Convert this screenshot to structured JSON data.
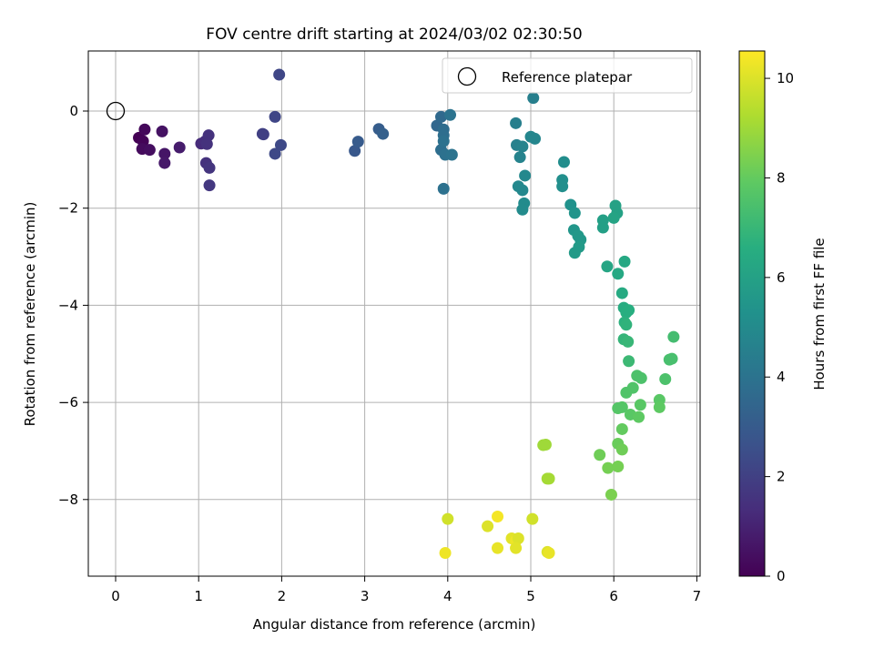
{
  "chart_data": {
    "type": "scatter",
    "title": "FOV centre drift starting at 2024/03/02 02:30:50",
    "xlabel": "Angular distance from reference (arcmin)",
    "ylabel": "Rotation from reference (arcmin)",
    "xlim": [
      -0.33,
      7.03
    ],
    "ylim": [
      -9.6,
      1.25
    ],
    "xticks": [
      "0",
      "1",
      "2",
      "3",
      "4",
      "5",
      "6",
      "7"
    ],
    "yticks": [
      "0",
      "−2",
      "−4",
      "−6",
      "−8"
    ],
    "grid": true,
    "legend": {
      "placement": "top-right",
      "entries": [
        "Reference platepar"
      ]
    },
    "reference_point": {
      "x": 0,
      "y": 0
    },
    "colorbar": {
      "label": "Hours from first FF file",
      "range": [
        0,
        10.55
      ],
      "ticks": [
        "0",
        "2",
        "4",
        "6",
        "8",
        "10"
      ],
      "colormap": "viridis"
    },
    "points": [
      {
        "x": 0.28,
        "y": -0.55,
        "h": 0.0
      },
      {
        "x": 0.33,
        "y": -0.62,
        "h": 0.1
      },
      {
        "x": 0.35,
        "y": -0.38,
        "h": 0.2
      },
      {
        "x": 0.32,
        "y": -0.78,
        "h": 0.3
      },
      {
        "x": 0.41,
        "y": -0.8,
        "h": 0.4
      },
      {
        "x": 0.56,
        "y": -0.42,
        "h": 0.5
      },
      {
        "x": 0.59,
        "y": -0.88,
        "h": 0.6
      },
      {
        "x": 0.59,
        "y": -1.07,
        "h": 0.7
      },
      {
        "x": 0.77,
        "y": -0.75,
        "h": 0.8
      },
      {
        "x": 1.03,
        "y": -0.67,
        "h": 1.3
      },
      {
        "x": 1.08,
        "y": -0.62,
        "h": 1.4
      },
      {
        "x": 1.12,
        "y": -0.5,
        "h": 1.5
      },
      {
        "x": 1.1,
        "y": -0.68,
        "h": 1.5
      },
      {
        "x": 1.09,
        "y": -1.07,
        "h": 1.5
      },
      {
        "x": 1.13,
        "y": -1.17,
        "h": 1.6
      },
      {
        "x": 1.13,
        "y": -1.53,
        "h": 1.7
      },
      {
        "x": 1.77,
        "y": -0.47,
        "h": 2.0
      },
      {
        "x": 1.78,
        "y": -0.48,
        "h": 2.0
      },
      {
        "x": 1.92,
        "y": -0.12,
        "h": 2.2
      },
      {
        "x": 1.99,
        "y": -0.7,
        "h": 2.3
      },
      {
        "x": 1.92,
        "y": -0.88,
        "h": 2.3
      },
      {
        "x": 1.97,
        "y": 0.75,
        "h": 2.2
      },
      {
        "x": 2.88,
        "y": -0.82,
        "h": 2.9
      },
      {
        "x": 2.92,
        "y": -0.63,
        "h": 3.0
      },
      {
        "x": 3.17,
        "y": -0.37,
        "h": 3.1
      },
      {
        "x": 3.22,
        "y": -0.47,
        "h": 3.2
      },
      {
        "x": 3.87,
        "y": -0.3,
        "h": 3.5
      },
      {
        "x": 3.92,
        "y": -0.12,
        "h": 3.6
      },
      {
        "x": 3.95,
        "y": -0.38,
        "h": 3.7
      },
      {
        "x": 3.95,
        "y": -0.5,
        "h": 3.8
      },
      {
        "x": 3.92,
        "y": -0.8,
        "h": 3.8
      },
      {
        "x": 3.97,
        "y": -0.9,
        "h": 3.9
      },
      {
        "x": 3.95,
        "y": -0.62,
        "h": 3.9
      },
      {
        "x": 4.03,
        "y": -0.08,
        "h": 4.0
      },
      {
        "x": 4.05,
        "y": -0.9,
        "h": 4.0
      },
      {
        "x": 3.95,
        "y": -1.6,
        "h": 3.9
      },
      {
        "x": 5.03,
        "y": 0.27,
        "h": 4.5
      },
      {
        "x": 4.82,
        "y": -0.25,
        "h": 4.5
      },
      {
        "x": 4.83,
        "y": -0.7,
        "h": 4.6
      },
      {
        "x": 4.9,
        "y": -0.73,
        "h": 4.7
      },
      {
        "x": 4.87,
        "y": -0.95,
        "h": 4.7
      },
      {
        "x": 5.0,
        "y": -0.53,
        "h": 4.8
      },
      {
        "x": 5.05,
        "y": -0.57,
        "h": 4.8
      },
      {
        "x": 4.93,
        "y": -1.33,
        "h": 4.9
      },
      {
        "x": 4.85,
        "y": -1.55,
        "h": 4.9
      },
      {
        "x": 4.9,
        "y": -1.63,
        "h": 4.9
      },
      {
        "x": 4.92,
        "y": -1.9,
        "h": 5.0
      },
      {
        "x": 4.9,
        "y": -2.03,
        "h": 5.0
      },
      {
        "x": 5.4,
        "y": -1.05,
        "h": 5.1
      },
      {
        "x": 5.38,
        "y": -1.42,
        "h": 5.2
      },
      {
        "x": 5.38,
        "y": -1.55,
        "h": 5.2
      },
      {
        "x": 5.48,
        "y": -1.93,
        "h": 5.3
      },
      {
        "x": 5.53,
        "y": -2.1,
        "h": 5.4
      },
      {
        "x": 5.52,
        "y": -2.45,
        "h": 5.5
      },
      {
        "x": 5.57,
        "y": -2.57,
        "h": 5.6
      },
      {
        "x": 5.6,
        "y": -2.65,
        "h": 5.6
      },
      {
        "x": 5.58,
        "y": -2.8,
        "h": 5.7
      },
      {
        "x": 5.53,
        "y": -2.92,
        "h": 5.7
      },
      {
        "x": 5.87,
        "y": -2.25,
        "h": 5.9
      },
      {
        "x": 5.87,
        "y": -2.4,
        "h": 5.9
      },
      {
        "x": 6.02,
        "y": -1.95,
        "h": 6.0
      },
      {
        "x": 6.04,
        "y": -2.1,
        "h": 6.0
      },
      {
        "x": 6.0,
        "y": -2.2,
        "h": 6.1
      },
      {
        "x": 5.92,
        "y": -3.2,
        "h": 6.2
      },
      {
        "x": 6.05,
        "y": -3.35,
        "h": 6.3
      },
      {
        "x": 6.13,
        "y": -3.1,
        "h": 6.3
      },
      {
        "x": 6.1,
        "y": -3.75,
        "h": 6.4
      },
      {
        "x": 6.12,
        "y": -4.05,
        "h": 6.5
      },
      {
        "x": 6.15,
        "y": -4.15,
        "h": 6.6
      },
      {
        "x": 6.18,
        "y": -4.1,
        "h": 6.6
      },
      {
        "x": 6.13,
        "y": -4.35,
        "h": 6.7
      },
      {
        "x": 6.15,
        "y": -4.4,
        "h": 6.8
      },
      {
        "x": 6.12,
        "y": -4.7,
        "h": 6.9
      },
      {
        "x": 6.17,
        "y": -4.75,
        "h": 7.0
      },
      {
        "x": 6.18,
        "y": -5.15,
        "h": 7.1
      },
      {
        "x": 6.72,
        "y": -4.65,
        "h": 7.3
      },
      {
        "x": 6.67,
        "y": -5.12,
        "h": 7.4
      },
      {
        "x": 6.7,
        "y": -5.1,
        "h": 7.4
      },
      {
        "x": 6.28,
        "y": -5.45,
        "h": 7.5
      },
      {
        "x": 6.33,
        "y": -5.5,
        "h": 7.5
      },
      {
        "x": 6.23,
        "y": -5.7,
        "h": 7.6
      },
      {
        "x": 6.15,
        "y": -5.8,
        "h": 7.6
      },
      {
        "x": 6.62,
        "y": -5.52,
        "h": 7.5
      },
      {
        "x": 6.05,
        "y": -6.12,
        "h": 7.7
      },
      {
        "x": 6.1,
        "y": -6.1,
        "h": 7.7
      },
      {
        "x": 6.2,
        "y": -6.25,
        "h": 7.8
      },
      {
        "x": 6.32,
        "y": -6.05,
        "h": 7.8
      },
      {
        "x": 6.3,
        "y": -6.3,
        "h": 7.9
      },
      {
        "x": 6.55,
        "y": -5.95,
        "h": 7.8
      },
      {
        "x": 6.55,
        "y": -6.1,
        "h": 7.9
      },
      {
        "x": 6.1,
        "y": -6.55,
        "h": 8.0
      },
      {
        "x": 6.05,
        "y": -6.85,
        "h": 8.1
      },
      {
        "x": 6.1,
        "y": -6.97,
        "h": 8.2
      },
      {
        "x": 5.83,
        "y": -7.08,
        "h": 8.2
      },
      {
        "x": 5.93,
        "y": -7.35,
        "h": 8.3
      },
      {
        "x": 6.05,
        "y": -7.32,
        "h": 8.3
      },
      {
        "x": 5.97,
        "y": -7.9,
        "h": 8.4
      },
      {
        "x": 5.15,
        "y": -6.88,
        "h": 9.0
      },
      {
        "x": 5.18,
        "y": -6.87,
        "h": 9.0
      },
      {
        "x": 5.2,
        "y": -7.57,
        "h": 9.1
      },
      {
        "x": 5.22,
        "y": -7.57,
        "h": 9.1
      },
      {
        "x": 4.0,
        "y": -8.4,
        "h": 9.8
      },
      {
        "x": 4.6,
        "y": -8.35,
        "h": 10.4
      },
      {
        "x": 4.48,
        "y": -8.55,
        "h": 10.0
      },
      {
        "x": 5.02,
        "y": -8.4,
        "h": 9.8
      },
      {
        "x": 4.77,
        "y": -8.8,
        "h": 10.1
      },
      {
        "x": 4.82,
        "y": -8.85,
        "h": 10.3
      },
      {
        "x": 4.85,
        "y": -8.8,
        "h": 10.0
      },
      {
        "x": 4.6,
        "y": -9.0,
        "h": 10.2
      },
      {
        "x": 4.82,
        "y": -9.0,
        "h": 10.1
      },
      {
        "x": 5.2,
        "y": -9.08,
        "h": 10.0
      },
      {
        "x": 5.22,
        "y": -9.1,
        "h": 10.2
      },
      {
        "x": 3.97,
        "y": -9.1,
        "h": 10.3
      }
    ]
  }
}
